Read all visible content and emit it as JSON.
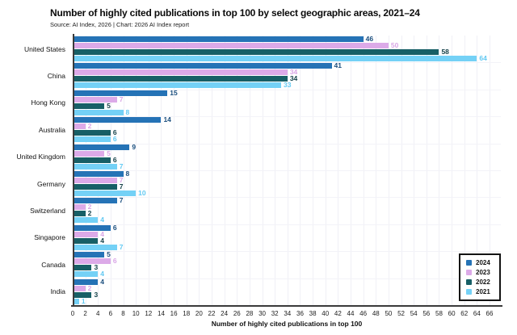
{
  "header": {
    "title": "Number of highly cited publications in top 100 by select geographic areas, 2021–24",
    "source": "Source: AI Index, 2026 | Chart: 2026 AI Index report"
  },
  "chart_data": {
    "type": "bar",
    "orientation": "horizontal",
    "title": "Number of highly cited publications in top 100 by select geographic areas, 2021–24",
    "subtitle": "Source: AI Index, 2026 | Chart: 2026 AI Index report",
    "xlabel": "Number of highly cited publications in top 100",
    "ylabel": "",
    "xlim": [
      0,
      66
    ],
    "xtick_step": 2,
    "grid": true,
    "legend_position": "bottom-right",
    "categories": [
      "United States",
      "China",
      "Hong Kong",
      "Australia",
      "United Kingdom",
      "Germany",
      "Switzerland",
      "Singapore",
      "Canada",
      "India"
    ],
    "series": [
      {
        "name": "2024",
        "color": "#2573b6",
        "label_color": "#1a4e7e",
        "values": [
          46,
          41,
          15,
          14,
          9,
          8,
          7,
          6,
          5,
          4
        ]
      },
      {
        "name": "2023",
        "color": "#dcaae8",
        "label_color": "#d9a6e6",
        "values": [
          50,
          34,
          7,
          2,
          5,
          7,
          2,
          4,
          6,
          2
        ]
      },
      {
        "name": "2022",
        "color": "#175f66",
        "label_color": "#123f47",
        "values": [
          58,
          34,
          5,
          6,
          6,
          7,
          2,
          4,
          3,
          3
        ]
      },
      {
        "name": "2021",
        "color": "#74d1f6",
        "label_color": "#62c9f2",
        "values": [
          64,
          33,
          8,
          6,
          7,
          10,
          4,
          7,
          4,
          1
        ]
      }
    ]
  }
}
